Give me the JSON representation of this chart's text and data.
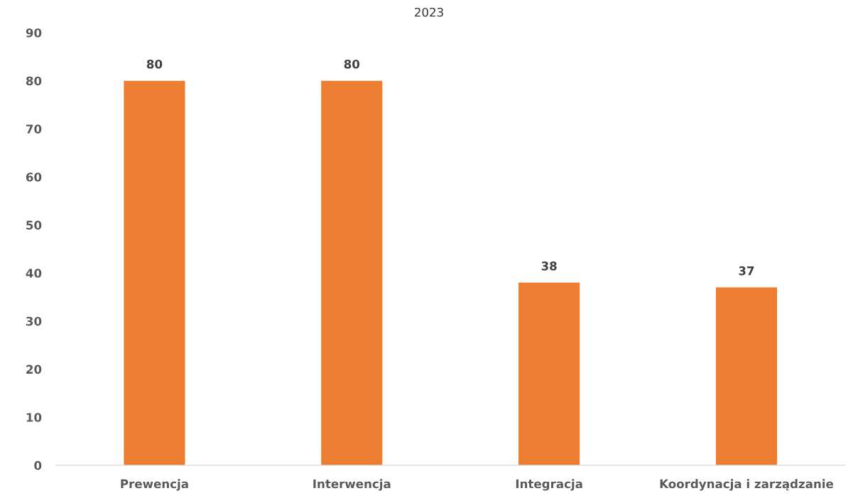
{
  "chart_data": {
    "type": "bar",
    "title": "2023",
    "categories": [
      "Prewencja",
      "Interwencja",
      "Integracja",
      "Koordynacja i zarządzanie"
    ],
    "values": [
      80,
      80,
      38,
      37
    ],
    "color": "#ed7d31",
    "ylim": [
      0,
      90
    ],
    "yticks": [
      0,
      10,
      20,
      30,
      40,
      50,
      60,
      70,
      80,
      90
    ],
    "data_labels": true,
    "grid": false
  }
}
